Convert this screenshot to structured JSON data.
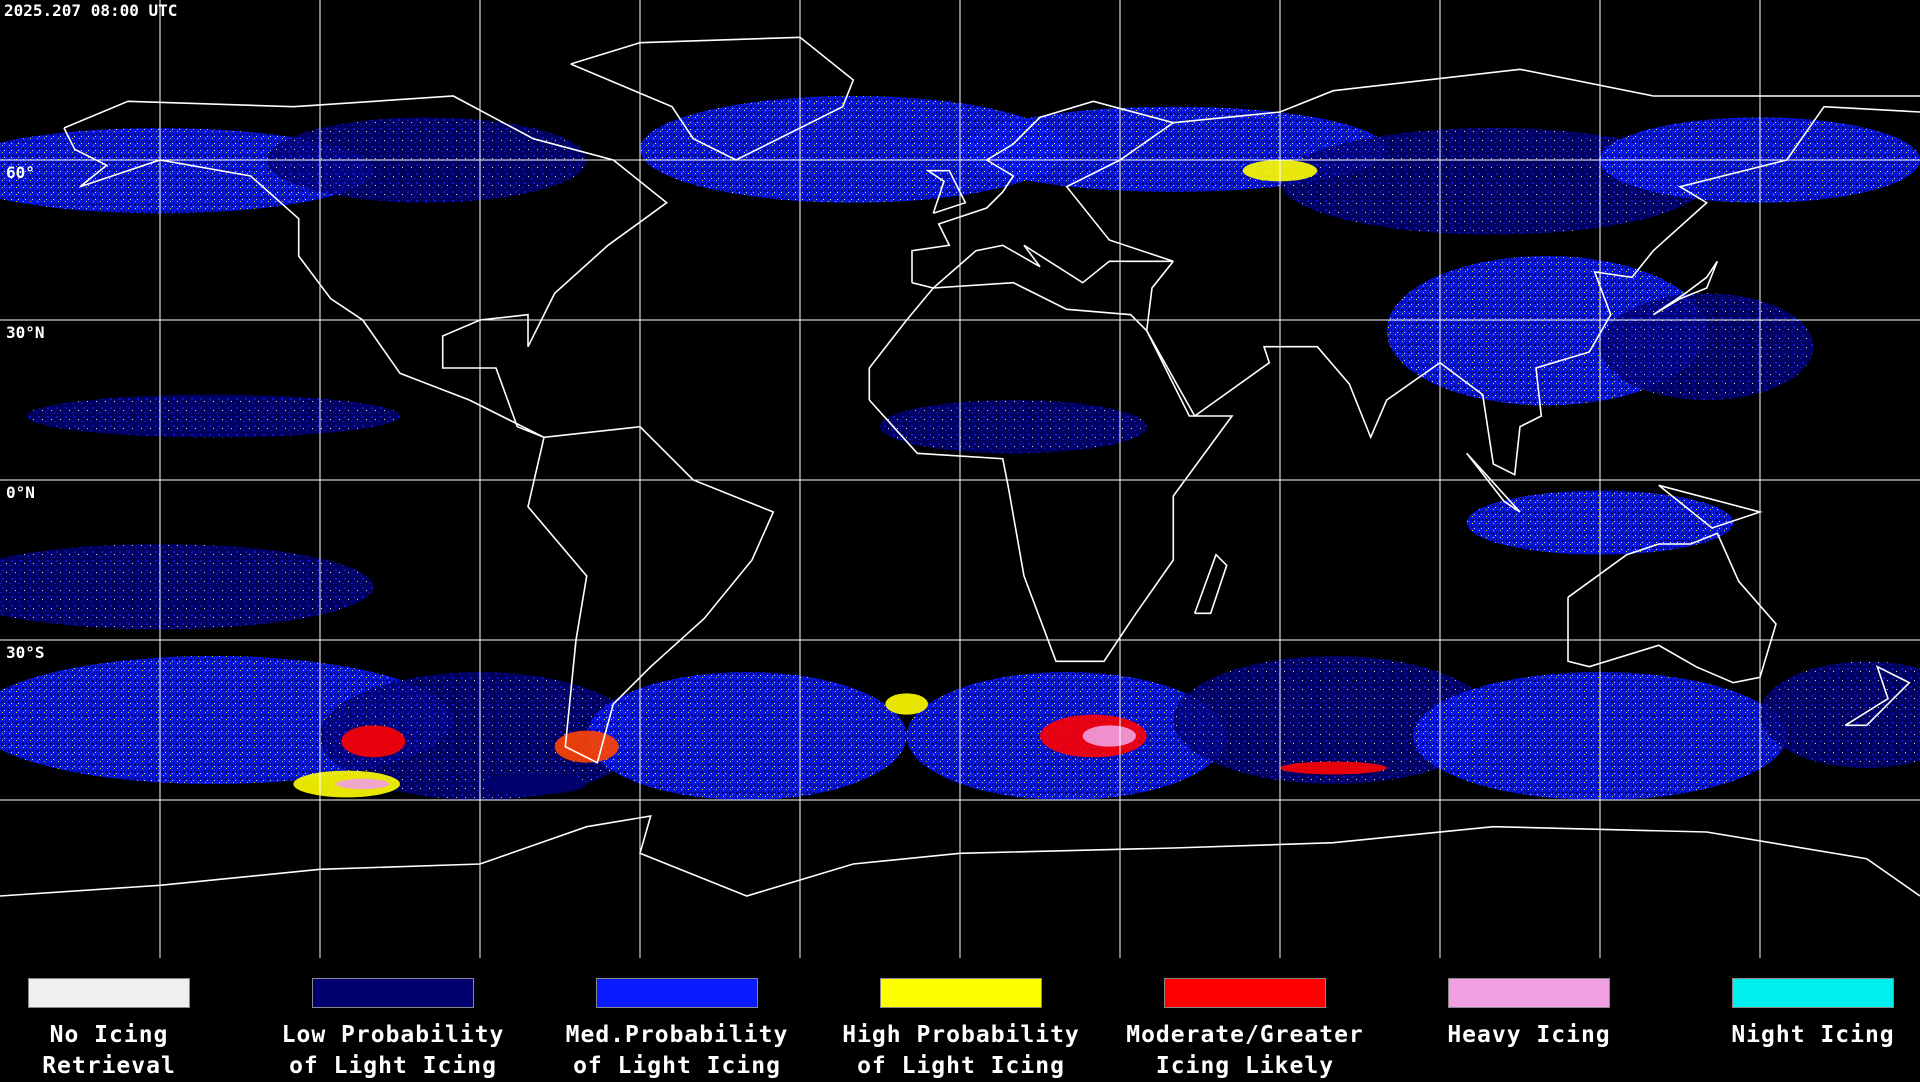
{
  "timestamp": "2025.207 08:00 UTC",
  "latitude_labels": [
    "60°",
    "30°N",
    "0°N",
    "30°S"
  ],
  "legend": [
    {
      "label_lines": [
        "No Icing",
        "Retrieval"
      ],
      "color": "#f0f0f0"
    },
    {
      "label_lines": [
        "Low Probability",
        "of Light Icing"
      ],
      "color": "#00006e"
    },
    {
      "label_lines": [
        "Med.Probability",
        "of Light Icing"
      ],
      "color": "#0a1aff"
    },
    {
      "label_lines": [
        "High Probability",
        "of Light Icing"
      ],
      "color": "#ffff00"
    },
    {
      "label_lines": [
        "Moderate/Greater",
        "Icing Likely"
      ],
      "color": "#ff0000"
    },
    {
      "label_lines": [
        "Heavy Icing"
      ],
      "color": "#f0a0e0"
    },
    {
      "label_lines": [
        "Night Icing"
      ],
      "color": "#00f0f0"
    }
  ]
}
